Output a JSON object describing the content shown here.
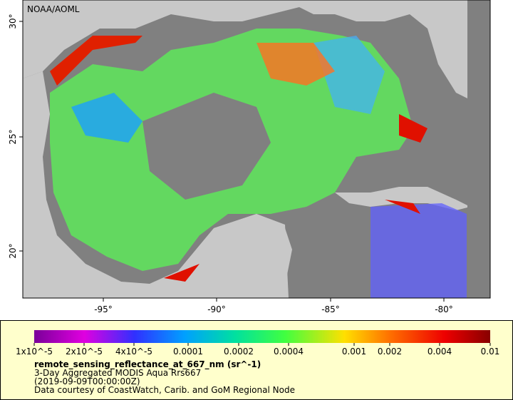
{
  "map": {
    "watermark": "NOAA/AOML",
    "lat_labels": [
      "30°",
      "25°",
      "20°"
    ],
    "lon_labels": [
      "-95°",
      "-90°",
      "-85°",
      "-80°"
    ]
  },
  "legend": {
    "ticks": [
      "1x10^-5",
      "2x10^-5",
      "4x10^-5",
      "0.0001",
      "0.0002",
      "0.0004",
      "0.001",
      "0.002",
      "0.004",
      "0.01"
    ],
    "variable": "remote_sensing_reflectance_at_667_nm (sr^-1)",
    "lines": [
      "3-Day Aggregated MODIS Aqua Rrs667",
      "(2019-09-09T00:00:00Z)",
      "Data courtesy of CoastWatch, Carib. and GoM Regional Node"
    ]
  }
}
